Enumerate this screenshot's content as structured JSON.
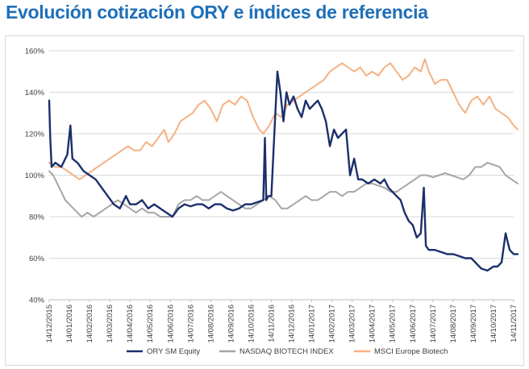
{
  "page": {
    "title": "Evolución cotización ORY e índices de referencia"
  },
  "colors": {
    "ory": "#1b2f6b",
    "nasdaq": "#a6a6a6",
    "msci": "#f4b183",
    "title": "#1f6fb8",
    "axis": "#bfbfbf"
  },
  "chart_data": {
    "type": "line",
    "title": "Evolución cotización ORY e índices de referencia",
    "xlabel": "",
    "ylabel": "",
    "ylim": [
      40,
      160
    ],
    "y_ticks": [
      40,
      60,
      80,
      100,
      120,
      140,
      160
    ],
    "y_tick_labels": [
      "40%",
      "60%",
      "80%",
      "100%",
      "120%",
      "140%",
      "160%"
    ],
    "x_tick_labels": [
      "14/12/2015",
      "14/01/2016",
      "14/02/2016",
      "14/03/2016",
      "14/04/2016",
      "14/05/2016",
      "14/06/2016",
      "14/07/2016",
      "14/08/2016",
      "14/09/2016",
      "14/10/2016",
      "14/11/2016",
      "14/12/2016",
      "14/01/2017",
      "14/02/2017",
      "14/03/2017",
      "14/04/2017",
      "14/05/2017",
      "14/06/2017",
      "14/07/2017",
      "14/08/2017",
      "14/09/2017",
      "14/10/2017",
      "14/11/2017"
    ],
    "grid": "horizontal",
    "legend_position": "bottom",
    "series": [
      {
        "name": "ORY SM Equity",
        "key": "ory",
        "points": [
          [
            0,
            136
          ],
          [
            0.05,
            118
          ],
          [
            0.12,
            104
          ],
          [
            0.3,
            106
          ],
          [
            0.6,
            104
          ],
          [
            0.9,
            110
          ],
          [
            1.05,
            124
          ],
          [
            1.15,
            108
          ],
          [
            1.4,
            106
          ],
          [
            1.7,
            102
          ],
          [
            2.0,
            100
          ],
          [
            2.3,
            98
          ],
          [
            2.6,
            94
          ],
          [
            2.9,
            90
          ],
          [
            3.2,
            86
          ],
          [
            3.5,
            84
          ],
          [
            3.8,
            90
          ],
          [
            4.0,
            86
          ],
          [
            4.3,
            86
          ],
          [
            4.6,
            88
          ],
          [
            4.9,
            84
          ],
          [
            5.2,
            86
          ],
          [
            5.5,
            84
          ],
          [
            5.8,
            82
          ],
          [
            6.1,
            80
          ],
          [
            6.4,
            84
          ],
          [
            6.7,
            86
          ],
          [
            7.0,
            85
          ],
          [
            7.3,
            86
          ],
          [
            7.6,
            86
          ],
          [
            7.9,
            84
          ],
          [
            8.2,
            86
          ],
          [
            8.5,
            86
          ],
          [
            8.8,
            84
          ],
          [
            9.1,
            83
          ],
          [
            9.4,
            84
          ],
          [
            9.7,
            86
          ],
          [
            10.0,
            86
          ],
          [
            10.3,
            87
          ],
          [
            10.6,
            88
          ],
          [
            10.68,
            118
          ],
          [
            10.75,
            88
          ],
          [
            10.85,
            90
          ],
          [
            11.0,
            90
          ],
          [
            11.15,
            120
          ],
          [
            11.3,
            150
          ],
          [
            11.45,
            140
          ],
          [
            11.6,
            126
          ],
          [
            11.75,
            140
          ],
          [
            11.9,
            134
          ],
          [
            12.1,
            138
          ],
          [
            12.3,
            132
          ],
          [
            12.5,
            128
          ],
          [
            12.7,
            136
          ],
          [
            12.9,
            132
          ],
          [
            13.1,
            134
          ],
          [
            13.3,
            136
          ],
          [
            13.5,
            132
          ],
          [
            13.7,
            126
          ],
          [
            13.9,
            114
          ],
          [
            14.1,
            122
          ],
          [
            14.3,
            118
          ],
          [
            14.5,
            120
          ],
          [
            14.7,
            122
          ],
          [
            14.9,
            100
          ],
          [
            15.1,
            108
          ],
          [
            15.3,
            98
          ],
          [
            15.5,
            98
          ],
          [
            15.8,
            96
          ],
          [
            16.1,
            98
          ],
          [
            16.4,
            96
          ],
          [
            16.6,
            98
          ],
          [
            16.8,
            94
          ],
          [
            17.0,
            92
          ],
          [
            17.2,
            90
          ],
          [
            17.4,
            88
          ],
          [
            17.6,
            82
          ],
          [
            17.8,
            78
          ],
          [
            18.0,
            76
          ],
          [
            18.2,
            70
          ],
          [
            18.4,
            72
          ],
          [
            18.55,
            94
          ],
          [
            18.65,
            66
          ],
          [
            18.8,
            64
          ],
          [
            19.1,
            64
          ],
          [
            19.4,
            63
          ],
          [
            19.7,
            62
          ],
          [
            20.0,
            62
          ],
          [
            20.3,
            61
          ],
          [
            20.6,
            60
          ],
          [
            20.9,
            60
          ],
          [
            21.1,
            58
          ],
          [
            21.4,
            55
          ],
          [
            21.7,
            54
          ],
          [
            22.0,
            56
          ],
          [
            22.2,
            56
          ],
          [
            22.4,
            58
          ],
          [
            22.6,
            72
          ],
          [
            22.8,
            64
          ],
          [
            23.0,
            62
          ],
          [
            23.2,
            62
          ]
        ]
      },
      {
        "name": "NASDAQ BIOTECH INDEX",
        "key": "nasdaq",
        "points": [
          [
            0,
            102
          ],
          [
            0.2,
            100
          ],
          [
            0.4,
            96
          ],
          [
            0.6,
            92
          ],
          [
            0.8,
            88
          ],
          [
            1.0,
            86
          ],
          [
            1.3,
            83
          ],
          [
            1.6,
            80
          ],
          [
            1.9,
            82
          ],
          [
            2.2,
            80
          ],
          [
            2.5,
            82
          ],
          [
            2.8,
            84
          ],
          [
            3.1,
            86
          ],
          [
            3.4,
            88
          ],
          [
            3.7,
            86
          ],
          [
            4.0,
            84
          ],
          [
            4.3,
            82
          ],
          [
            4.6,
            84
          ],
          [
            4.9,
            82
          ],
          [
            5.2,
            82
          ],
          [
            5.5,
            80
          ],
          [
            5.8,
            80
          ],
          [
            6.1,
            80
          ],
          [
            6.4,
            86
          ],
          [
            6.7,
            88
          ],
          [
            7.0,
            88
          ],
          [
            7.3,
            90
          ],
          [
            7.6,
            88
          ],
          [
            7.9,
            88
          ],
          [
            8.2,
            90
          ],
          [
            8.5,
            92
          ],
          [
            8.8,
            90
          ],
          [
            9.1,
            88
          ],
          [
            9.4,
            86
          ],
          [
            9.7,
            84
          ],
          [
            10.0,
            84
          ],
          [
            10.3,
            86
          ],
          [
            10.6,
            88
          ],
          [
            10.9,
            90
          ],
          [
            11.2,
            88
          ],
          [
            11.5,
            84
          ],
          [
            11.8,
            84
          ],
          [
            12.1,
            86
          ],
          [
            12.4,
            88
          ],
          [
            12.7,
            90
          ],
          [
            13.0,
            88
          ],
          [
            13.3,
            88
          ],
          [
            13.6,
            90
          ],
          [
            13.9,
            92
          ],
          [
            14.2,
            92
          ],
          [
            14.5,
            90
          ],
          [
            14.8,
            92
          ],
          [
            15.1,
            92
          ],
          [
            15.4,
            94
          ],
          [
            15.7,
            96
          ],
          [
            16.0,
            96
          ],
          [
            16.3,
            95
          ],
          [
            16.6,
            94
          ],
          [
            16.9,
            92
          ],
          [
            17.2,
            92
          ],
          [
            17.5,
            94
          ],
          [
            17.8,
            96
          ],
          [
            18.1,
            98
          ],
          [
            18.4,
            100
          ],
          [
            18.7,
            100
          ],
          [
            19.0,
            99
          ],
          [
            19.3,
            100
          ],
          [
            19.6,
            101
          ],
          [
            19.9,
            100
          ],
          [
            20.2,
            99
          ],
          [
            20.5,
            98
          ],
          [
            20.8,
            100
          ],
          [
            21.1,
            104
          ],
          [
            21.4,
            104
          ],
          [
            21.7,
            106
          ],
          [
            22.0,
            105
          ],
          [
            22.3,
            104
          ],
          [
            22.6,
            100
          ],
          [
            22.9,
            98
          ],
          [
            23.2,
            96
          ]
        ]
      },
      {
        "name": "MSCI Europe Biotech",
        "key": "msci",
        "points": [
          [
            0,
            106
          ],
          [
            0.3,
            104
          ],
          [
            0.6,
            104
          ],
          [
            0.9,
            102
          ],
          [
            1.2,
            100
          ],
          [
            1.5,
            98
          ],
          [
            1.8,
            100
          ],
          [
            2.1,
            102
          ],
          [
            2.4,
            104
          ],
          [
            2.7,
            106
          ],
          [
            3.0,
            108
          ],
          [
            3.3,
            110
          ],
          [
            3.6,
            112
          ],
          [
            3.9,
            114
          ],
          [
            4.2,
            112
          ],
          [
            4.5,
            112
          ],
          [
            4.8,
            116
          ],
          [
            5.1,
            114
          ],
          [
            5.4,
            118
          ],
          [
            5.7,
            122
          ],
          [
            5.9,
            116
          ],
          [
            6.2,
            120
          ],
          [
            6.5,
            126
          ],
          [
            6.8,
            128
          ],
          [
            7.1,
            130
          ],
          [
            7.4,
            134
          ],
          [
            7.7,
            136
          ],
          [
            8.0,
            132
          ],
          [
            8.3,
            126
          ],
          [
            8.6,
            134
          ],
          [
            8.9,
            136
          ],
          [
            9.2,
            134
          ],
          [
            9.5,
            138
          ],
          [
            9.8,
            136
          ],
          [
            10.1,
            128
          ],
          [
            10.4,
            122
          ],
          [
            10.6,
            120
          ],
          [
            10.9,
            124
          ],
          [
            11.2,
            130
          ],
          [
            11.5,
            128
          ],
          [
            11.8,
            134
          ],
          [
            12.1,
            136
          ],
          [
            12.4,
            138
          ],
          [
            12.7,
            140
          ],
          [
            13.0,
            142
          ],
          [
            13.3,
            144
          ],
          [
            13.6,
            146
          ],
          [
            13.9,
            150
          ],
          [
            14.2,
            152
          ],
          [
            14.5,
            154
          ],
          [
            14.8,
            152
          ],
          [
            15.1,
            150
          ],
          [
            15.4,
            152
          ],
          [
            15.7,
            148
          ],
          [
            16.0,
            150
          ],
          [
            16.3,
            148
          ],
          [
            16.6,
            152
          ],
          [
            16.9,
            154
          ],
          [
            17.2,
            150
          ],
          [
            17.5,
            146
          ],
          [
            17.8,
            148
          ],
          [
            18.1,
            152
          ],
          [
            18.4,
            150
          ],
          [
            18.6,
            156
          ],
          [
            18.8,
            150
          ],
          [
            19.1,
            144
          ],
          [
            19.4,
            146
          ],
          [
            19.7,
            146
          ],
          [
            20.0,
            140
          ],
          [
            20.3,
            134
          ],
          [
            20.6,
            130
          ],
          [
            20.9,
            136
          ],
          [
            21.2,
            138
          ],
          [
            21.5,
            134
          ],
          [
            21.8,
            138
          ],
          [
            22.1,
            132
          ],
          [
            22.4,
            130
          ],
          [
            22.7,
            128
          ],
          [
            23.0,
            124
          ],
          [
            23.2,
            122
          ]
        ]
      }
    ]
  }
}
